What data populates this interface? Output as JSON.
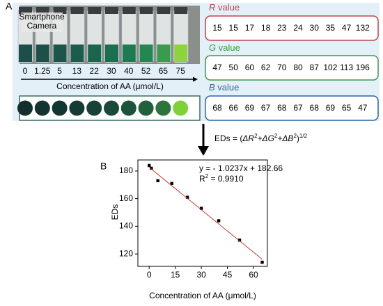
{
  "panel_a": {
    "label": "A",
    "camera_label": [
      "Smartphone",
      "Camera"
    ],
    "concentrations": [
      "0",
      "1.25",
      "5",
      "13",
      "22",
      "30",
      "40",
      "52",
      "65",
      "75"
    ],
    "axis_label": "Concentration of AA (μmol/L)",
    "vial_colors": [
      "#1d4f4a",
      "#1d5048",
      "#1c564a",
      "#1b5c4c",
      "#1a654e",
      "#1b6e50",
      "#1f7a52",
      "#258652",
      "#3a9a4e",
      "#8ed23e"
    ],
    "circle_colors": [
      "#13302f",
      "#143331",
      "#143633",
      "#163b35",
      "#184137",
      "#1a4939",
      "#1d533b",
      "#225f3c",
      "#2d733c",
      "#7fd13a"
    ],
    "r": {
      "symbol": "R",
      "word": "value",
      "color": "#c0444e",
      "values": [
        "15",
        "15",
        "17",
        "18",
        "23",
        "24",
        "30",
        "35",
        "47",
        "132"
      ]
    },
    "g": {
      "symbol": "G",
      "word": "value",
      "color": "#3b9a4a",
      "values": [
        "47",
        "50",
        "60",
        "62",
        "70",
        "80",
        "87",
        "102",
        "113",
        "196"
      ]
    },
    "b": {
      "symbol": "B",
      "word": "value",
      "color": "#2f64a8",
      "values": [
        "68",
        "66",
        "69",
        "67",
        "68",
        "67",
        "68",
        "69",
        "65",
        "47"
      ]
    },
    "formula": [
      "EDs = (",
      "ΔR",
      "2",
      "+ΔG",
      "2",
      "+ΔB",
      "2",
      ")",
      "1/2"
    ]
  },
  "chart_data": {
    "type": "scatter",
    "panel_label": "B",
    "x_label": "Concentration of AA (μmol/L)",
    "y_label": "EDs",
    "equation": "y = - 1.0237x + 182.66",
    "r_squared": [
      "R",
      "2",
      " = 0.9910"
    ],
    "series": [
      {
        "color": "#000000",
        "x": [
          0,
          1.25,
          5,
          13,
          22,
          30,
          40,
          52,
          65
        ],
        "values": [
          184,
          182,
          173,
          171,
          161,
          153,
          144,
          130,
          114
        ]
      },
      {
        "color": "#c0392b",
        "mode": "line",
        "x": [
          0,
          65
        ],
        "values": [
          182.66,
          116.12
        ]
      }
    ],
    "xlim": [
      -6.5,
      68
    ],
    "xticks": [
      0,
      15,
      30,
      45,
      60
    ],
    "ylim": [
      111,
      188
    ],
    "yticks": [
      120,
      140,
      160,
      180
    ]
  }
}
